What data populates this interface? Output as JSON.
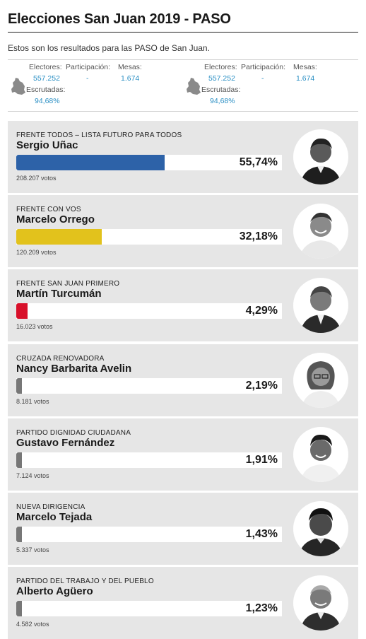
{
  "header": {
    "title": "Elecciones San Juan 2019 - PASO",
    "subtitle": "Estos son los resultados para las PASO de San Juan."
  },
  "stats": [
    {
      "electores_label": "Electores:",
      "electores_value": "557.252",
      "participacion_label": "Participación:",
      "participacion_value": "-",
      "mesas_label": "Mesas:",
      "mesas_value": "1.674",
      "escrutadas_label": "Escrutadas:",
      "escrutadas_value": "94,68%"
    },
    {
      "electores_label": "Electores:",
      "electores_value": "557.252",
      "participacion_label": "Participación:",
      "participacion_value": "-",
      "mesas_label": "Mesas:",
      "mesas_value": "1.674",
      "escrutadas_label": "Escrutadas:",
      "escrutadas_value": "94,68%"
    }
  ],
  "candidates": [
    {
      "party": "FRENTE TODOS – LISTA FUTURO PARA TODOS",
      "name": "Sergio Uñac",
      "pct": "55,74%",
      "share": 55.74,
      "votes": "208.207 votos",
      "color": "#2d62a8",
      "photo_icon": "candidate-photo-icon"
    },
    {
      "party": "FRENTE CON VOS",
      "name": "Marcelo Orrego",
      "pct": "32,18%",
      "share": 32.18,
      "votes": "120.209 votos",
      "color": "#e2c21c",
      "photo_icon": "candidate-photo-icon"
    },
    {
      "party": "FRENTE SAN JUAN PRIMERO",
      "name": "Martín Turcumán",
      "pct": "4,29%",
      "share": 4.29,
      "votes": "16.023 votos",
      "color": "#d8102a",
      "photo_icon": "candidate-photo-icon"
    },
    {
      "party": "CRUZADA RENOVADORA",
      "name": "Nancy Barbarita Avelin",
      "pct": "2,19%",
      "share": 2.19,
      "votes": "8.181 votos",
      "color": "#777777",
      "photo_icon": "candidate-photo-icon"
    },
    {
      "party": "PARTIDO DIGNIDAD CIUDADANA",
      "name": "Gustavo Fernández",
      "pct": "1,91%",
      "share": 1.91,
      "votes": "7.124 votos",
      "color": "#777777",
      "photo_icon": "candidate-photo-icon"
    },
    {
      "party": "NUEVA DIRIGENCIA",
      "name": "Marcelo Tejada",
      "pct": "1,43%",
      "share": 1.43,
      "votes": "5.337 votos",
      "color": "#777777",
      "photo_icon": "candidate-photo-icon"
    },
    {
      "party": "PARTIDO DEL TRABAJO Y DEL PUEBLO",
      "name": "Alberto Agüero",
      "pct": "1,23%",
      "share": 1.23,
      "votes": "4.582 votos",
      "color": "#777777",
      "photo_icon": "candidate-photo-icon"
    }
  ]
}
